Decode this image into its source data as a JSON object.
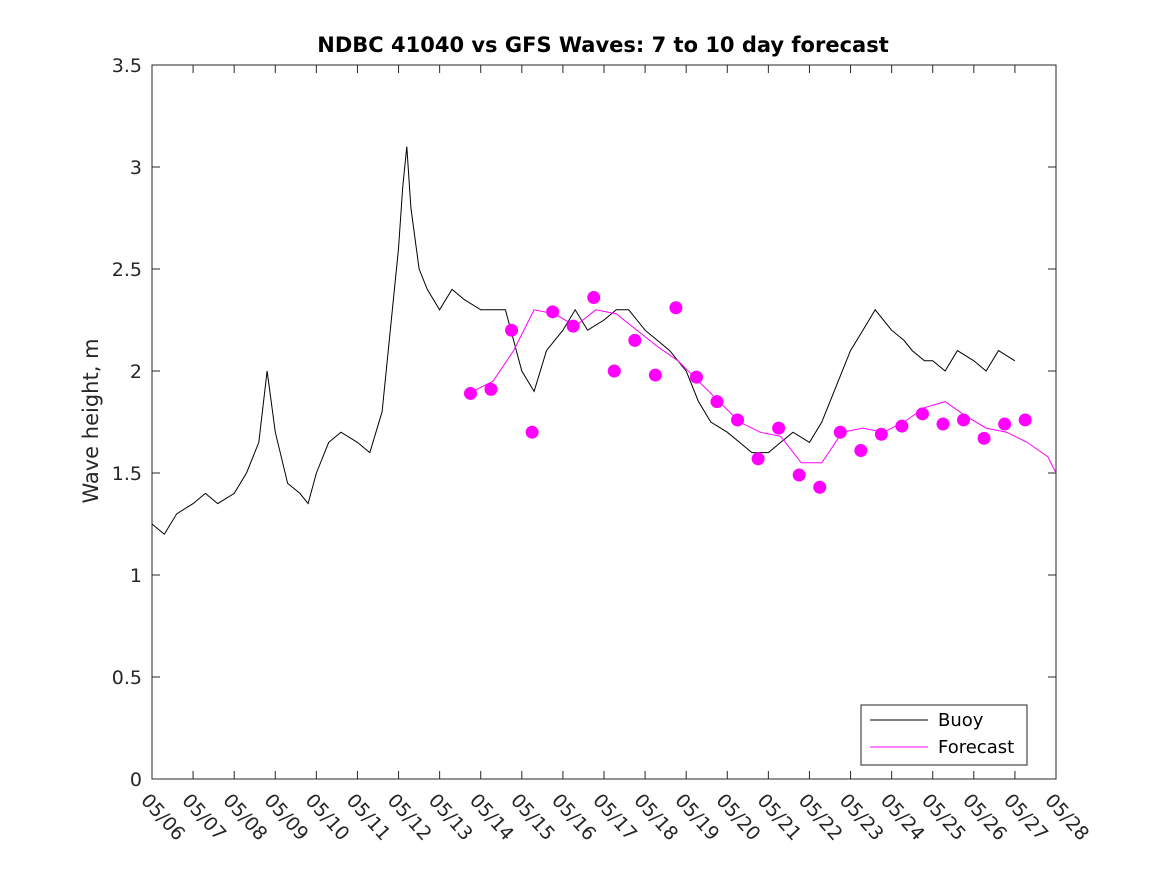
{
  "chart_data": {
    "type": "line",
    "title": "NDBC 41040 vs GFS Waves: 7 to 10 day forecast",
    "xlabel": "",
    "ylabel": "Wave height, m",
    "x_tick_labels": [
      "05/06",
      "05/07",
      "05/08",
      "05/09",
      "05/10",
      "05/11",
      "05/12",
      "05/13",
      "05/14",
      "05/15",
      "05/16",
      "05/17",
      "05/18",
      "05/19",
      "05/20",
      "05/21",
      "05/22",
      "05/23",
      "05/24",
      "05/25",
      "05/26",
      "05/27",
      "05/28"
    ],
    "xlim": [
      0,
      22
    ],
    "ylim": [
      0,
      3.5
    ],
    "y_ticks": [
      0,
      0.5,
      1,
      1.5,
      2,
      2.5,
      3,
      3.5
    ],
    "y_tick_labels": [
      "0",
      "0.5",
      "1",
      "1.5",
      "2",
      "2.5",
      "3",
      "3.5"
    ],
    "x_units": "days since 05/06",
    "legend": {
      "position": "bottom-right",
      "entries": [
        "Buoy",
        "Forecast"
      ]
    },
    "colors": {
      "buoy": "#000000",
      "forecast": "#ff00ff"
    },
    "series": [
      {
        "name": "Buoy",
        "x": [
          0,
          0.3,
          0.6,
          1,
          1.3,
          1.6,
          2,
          2.3,
          2.6,
          2.8,
          3,
          3.3,
          3.6,
          3.8,
          4,
          4.3,
          4.6,
          5,
          5.3,
          5.6,
          5.8,
          6,
          6.1,
          6.2,
          6.3,
          6.5,
          6.7,
          7,
          7.3,
          7.6,
          8,
          8.3,
          8.6,
          9,
          9.3,
          9.6,
          10,
          10.3,
          10.6,
          11,
          11.3,
          11.6,
          12,
          12.3,
          12.6,
          13,
          13.3,
          13.6,
          14,
          14.3,
          14.6,
          15,
          15.3,
          15.6,
          16,
          16.3,
          16.6,
          17,
          17.3,
          17.6,
          18,
          18.3,
          18.5,
          18.8,
          19,
          19.3,
          19.6,
          20,
          20.3,
          20.6,
          21
        ],
        "y": [
          1.25,
          1.2,
          1.3,
          1.35,
          1.4,
          1.35,
          1.4,
          1.5,
          1.65,
          2.0,
          1.7,
          1.45,
          1.4,
          1.35,
          1.5,
          1.65,
          1.7,
          1.65,
          1.6,
          1.8,
          2.2,
          2.6,
          2.9,
          3.1,
          2.8,
          2.5,
          2.4,
          2.3,
          2.4,
          2.35,
          2.3,
          2.3,
          2.3,
          2.0,
          1.9,
          2.1,
          2.2,
          2.3,
          2.2,
          2.25,
          2.3,
          2.3,
          2.2,
          2.15,
          2.1,
          2.0,
          1.85,
          1.75,
          1.7,
          1.65,
          1.6,
          1.6,
          1.65,
          1.7,
          1.65,
          1.75,
          1.9,
          2.1,
          2.2,
          2.3,
          2.2,
          2.15,
          2.1,
          2.05,
          2.05,
          2.0,
          2.1,
          2.05,
          2.0,
          2.1,
          2.05
        ]
      },
      {
        "name": "Forecast",
        "x": [
          7.8,
          8.3,
          8.8,
          9.3,
          9.8,
          10.3,
          10.8,
          11.3,
          11.8,
          12.3,
          12.8,
          13.3,
          13.8,
          14.3,
          14.8,
          15.3,
          15.8,
          16.3,
          16.8,
          17.3,
          17.8,
          18.3,
          18.8,
          19.3,
          19.8,
          20.3,
          20.8,
          21.3,
          21.8,
          22
        ],
        "y": [
          1.9,
          1.95,
          2.1,
          2.3,
          2.28,
          2.22,
          2.3,
          2.28,
          2.2,
          2.12,
          2.05,
          1.95,
          1.85,
          1.75,
          1.7,
          1.68,
          1.55,
          1.55,
          1.7,
          1.72,
          1.7,
          1.75,
          1.82,
          1.85,
          1.78,
          1.72,
          1.7,
          1.65,
          1.58,
          1.5
        ]
      }
    ],
    "forecast_markers": {
      "x": [
        7.75,
        8.25,
        8.75,
        9.25,
        9.75,
        10.25,
        10.75,
        11.25,
        11.75,
        12.25,
        12.75,
        13.25,
        13.75,
        14.25,
        14.75,
        15.25,
        15.75,
        16.25,
        16.75,
        17.25,
        17.75,
        18.25,
        18.75,
        19.25,
        19.75,
        20.25,
        20.75,
        21.25
      ],
      "y": [
        1.89,
        1.91,
        2.2,
        1.7,
        2.29,
        2.22,
        2.36,
        2.0,
        2.15,
        1.98,
        2.31,
        1.97,
        1.85,
        1.76,
        1.57,
        1.72,
        1.49,
        1.43,
        1.7,
        1.61,
        1.69,
        1.73,
        1.79,
        1.74,
        1.76,
        1.67,
        1.74,
        1.76
      ]
    }
  }
}
